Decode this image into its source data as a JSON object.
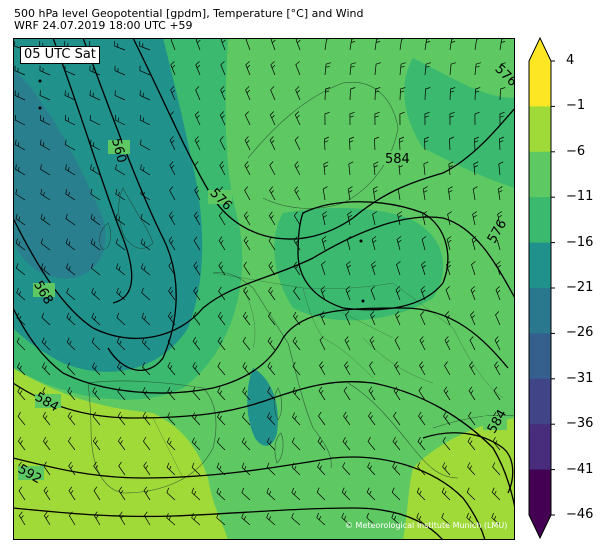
{
  "header": {
    "title_line1": "500 hPa level Geopotential [gpdm], Temperature [°C] and Wind",
    "title_line2": "WRF 24.07.2019 18:00 UTC +59"
  },
  "map": {
    "time_label": "05 UTC Sat",
    "copyright": "© Meteorological Institute Munich (LMU)",
    "contour_labels": [
      "576",
      "584",
      "560",
      "576",
      "576",
      "568",
      "584",
      "592",
      "584"
    ]
  },
  "colorbar": {
    "tick_labels": [
      "4",
      "−1",
      "−6",
      "−11",
      "−16",
      "−21",
      "−26",
      "−31",
      "−36",
      "−41",
      "−46"
    ],
    "colors": [
      "#fde725",
      "#a0da39",
      "#5ec962",
      "#3bb96e",
      "#21918c",
      "#2a788e",
      "#355f8d",
      "#414487",
      "#472d7b",
      "#440154"
    ]
  }
}
